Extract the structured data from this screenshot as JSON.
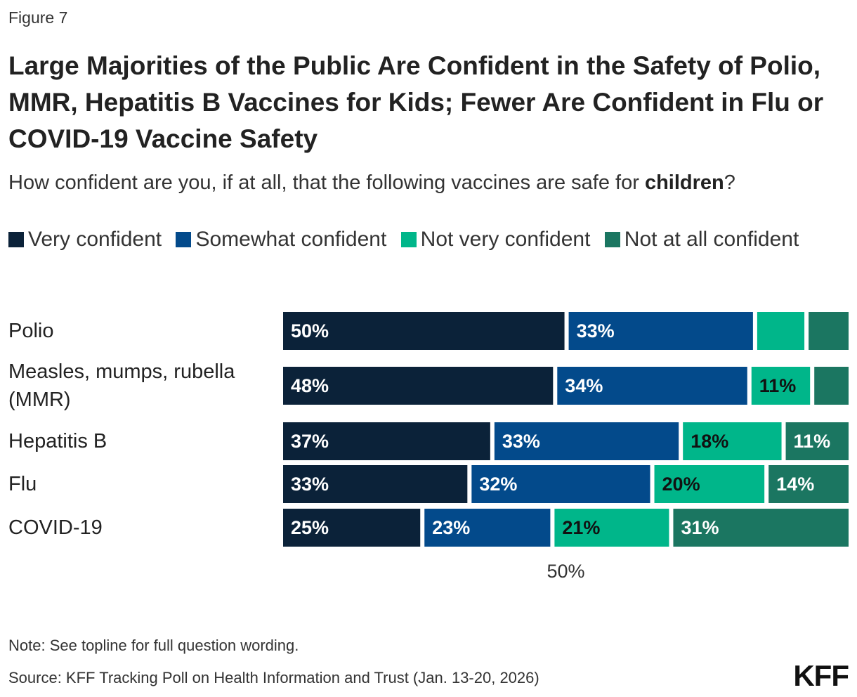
{
  "figure_label": "Figure 7",
  "title": "Large Majorities of the Public Are Confident in the Safety of Polio, MMR, Hepatitis B Vaccines for Kids; Fewer Are Confident in Flu or COVID-19 Vaccine Safety",
  "subtitle": {
    "prefix": "How confident are you, if at all, that the following vaccines are safe for ",
    "bold": "children",
    "suffix": "?"
  },
  "legend": [
    {
      "label": "Very confident",
      "color": "#0b2239"
    },
    {
      "label": "Somewhat confident",
      "color": "#034a8b"
    },
    {
      "label": "Not very confident",
      "color": "#00b68a"
    },
    {
      "label": "Not at all confident",
      "color": "#1b7661"
    }
  ],
  "chart_data": {
    "type": "bar",
    "orientation": "horizontal",
    "stacked": true,
    "categories": [
      [
        "Polio"
      ],
      [
        "Measles, mumps, rubella",
        "(MMR)"
      ],
      [
        "Hepatitis B"
      ],
      [
        "Flu"
      ],
      [
        "COVID-19"
      ]
    ],
    "series": [
      {
        "name": "Very confident",
        "values": [
          50,
          48,
          37,
          33,
          25
        ],
        "labels": [
          "50%",
          "48%",
          "37%",
          "33%",
          "25%"
        ],
        "label_color": "#ffffff"
      },
      {
        "name": "Somewhat confident",
        "values": [
          33,
          34,
          33,
          32,
          23
        ],
        "labels": [
          "33%",
          "34%",
          "33%",
          "32%",
          "23%"
        ],
        "label_color": "#ffffff"
      },
      {
        "name": "Not very confident",
        "values": [
          9,
          11,
          18,
          20,
          21
        ],
        "labels": [
          "",
          "11%",
          "18%",
          "20%",
          "21%"
        ],
        "label_color": "#111111"
      },
      {
        "name": "Not at all confident",
        "values": [
          7,
          6,
          11,
          14,
          31
        ],
        "labels": [
          "",
          "",
          "11%",
          "14%",
          "31%"
        ],
        "label_color": "#ffffff"
      }
    ],
    "xlim": [
      0,
      100
    ],
    "x_ticks": [
      {
        "value": 50,
        "label": "50%"
      }
    ],
    "grid": false,
    "legend_position": "top"
  },
  "note": "Note: See topline for full question wording.",
  "source": "Source: KFF Tracking Poll on Health Information and Trust (Jan. 13-20, 2026)",
  "logo": "KFF"
}
